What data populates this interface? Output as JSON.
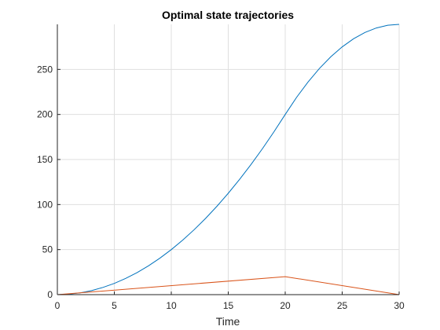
{
  "chart_data": {
    "type": "line",
    "title": "Optimal state trajectories",
    "xlabel": "Time",
    "ylabel": "",
    "xlim": [
      0,
      30
    ],
    "ylim": [
      0,
      300
    ],
    "xticks": [
      0,
      5,
      10,
      15,
      20,
      25,
      30
    ],
    "yticks": [
      0,
      50,
      100,
      150,
      200,
      250
    ],
    "grid": true,
    "series": [
      {
        "color": "#0072bd",
        "x": [
          0,
          1,
          2,
          3,
          4,
          5,
          6,
          7,
          8,
          9,
          10,
          11,
          12,
          13,
          14,
          15,
          16,
          17,
          18,
          19,
          20,
          21,
          22,
          23,
          24,
          25,
          26,
          27,
          28,
          29,
          30
        ],
        "y": [
          0,
          0.5,
          2,
          4.5,
          8,
          12.5,
          18,
          24.5,
          32,
          40.5,
          50,
          60.5,
          72,
          84.5,
          98,
          112.5,
          128,
          144.5,
          162,
          180.5,
          200,
          219,
          236,
          251,
          264,
          275,
          284,
          291,
          296,
          299,
          300
        ]
      },
      {
        "color": "#d95319",
        "x": [
          0,
          20,
          30
        ],
        "y": [
          0,
          20,
          0
        ]
      }
    ]
  }
}
